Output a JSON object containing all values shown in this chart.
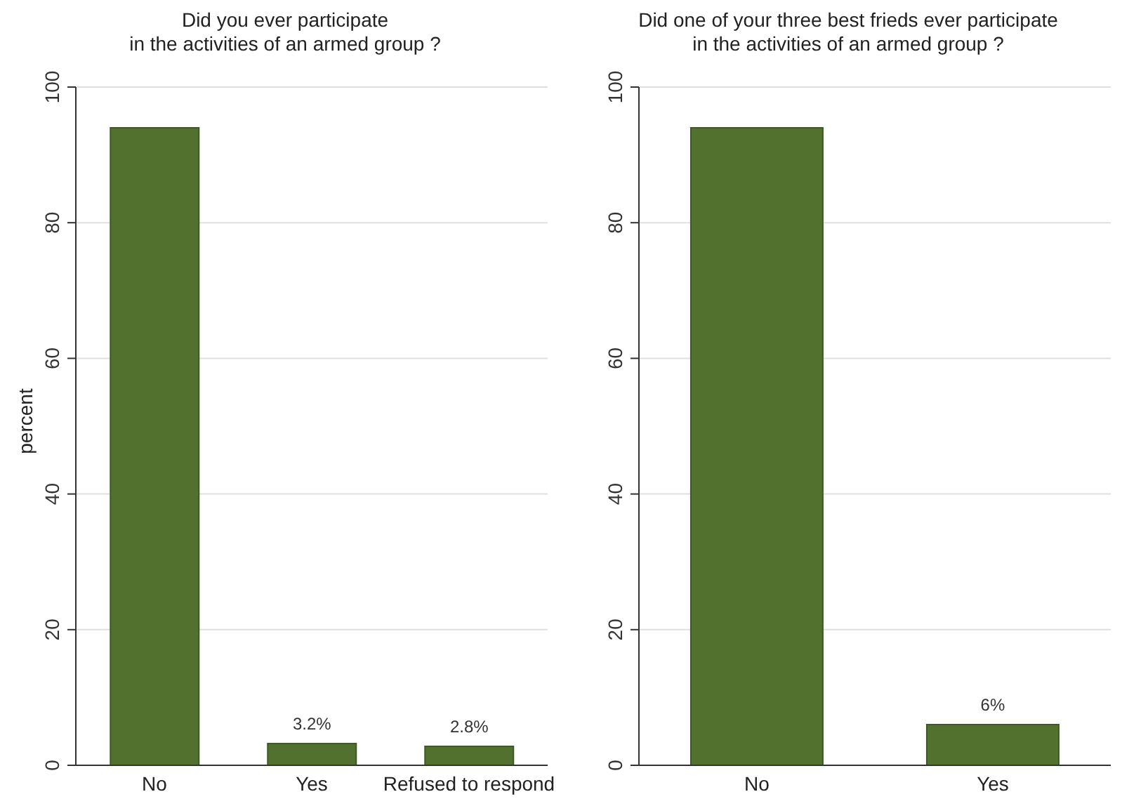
{
  "chart_data": [
    {
      "type": "bar",
      "title": "Did you ever participate\nin the activities of an armed group ?",
      "ylabel": "percent",
      "categories": [
        "No",
        "Yes",
        "Refused to respond"
      ],
      "values": [
        94,
        3.2,
        2.8
      ],
      "value_labels": [
        null,
        "3.2%",
        "2.8%"
      ],
      "color": "#52712f",
      "ylim": [
        0,
        100
      ],
      "yticks": [
        0,
        20,
        40,
        60,
        80,
        100
      ],
      "grid": "y"
    },
    {
      "type": "bar",
      "title": "Did one of your three best frieds ever participate\nin the activities of an armed group ?",
      "categories": [
        "No",
        "Yes"
      ],
      "values": [
        94,
        6
      ],
      "value_labels": [
        null,
        "6%"
      ],
      "color": "#52712f",
      "ylim": [
        0,
        100
      ],
      "yticks": [
        0,
        20,
        40,
        60,
        80,
        100
      ],
      "grid": "y"
    }
  ]
}
